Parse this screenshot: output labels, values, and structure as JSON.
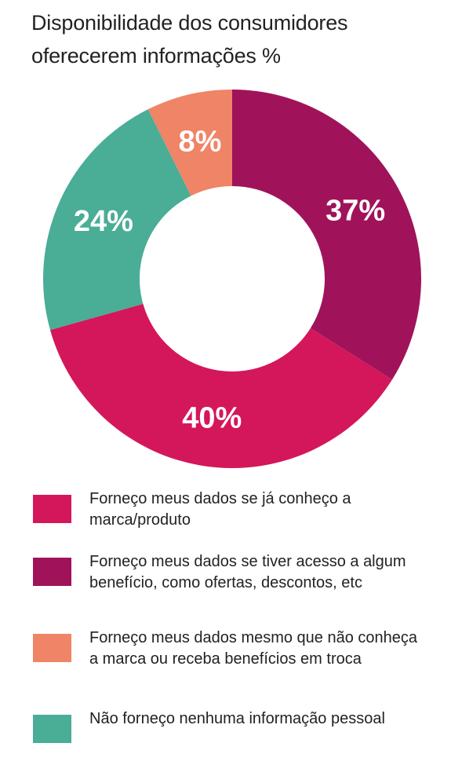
{
  "title": "Disponibilidade dos consumidores oferecerem informações %",
  "colors": {
    "crimson": "#d4175a",
    "magenta": "#a0135a",
    "salmon": "#ef8466",
    "teal": "#4aad96"
  },
  "chart_data": {
    "type": "pie",
    "title": "Disponibilidade dos consumidores oferecerem informações %",
    "series": [
      {
        "name": "Forneço meus dados se tiver acesso a algum benefício, como ofertas, descontos, etc",
        "value": 37,
        "label": "37%",
        "color": "#a0135a"
      },
      {
        "name": "Forneço meus dados se já conheço a marca/produto",
        "value": 40,
        "label": "40%",
        "color": "#d4175a"
      },
      {
        "name": "Não forneço nenhuma informação pessoal",
        "value": 24,
        "label": "24%",
        "color": "#4aad96"
      },
      {
        "name": "Forneço meus dados mesmo que não conheça a marca ou receba benefícios em troca",
        "value": 8,
        "label": "8%",
        "color": "#ef8466"
      }
    ],
    "legend": [
      {
        "label": "Forneço meus dados se já conheço a marca/produto",
        "color": "#d4175a"
      },
      {
        "label": "Forneço meus dados se tiver acesso a algum benefício, como ofertas, descontos, etc",
        "color": "#a0135a"
      },
      {
        "label": "Forneço meus dados mesmo que não conheça a marca ou receba benefícios em troca",
        "color": "#ef8466"
      },
      {
        "label": "Não forneço nenhuma informação pessoal",
        "color": "#4aad96"
      }
    ],
    "legend_position": "bottom"
  }
}
